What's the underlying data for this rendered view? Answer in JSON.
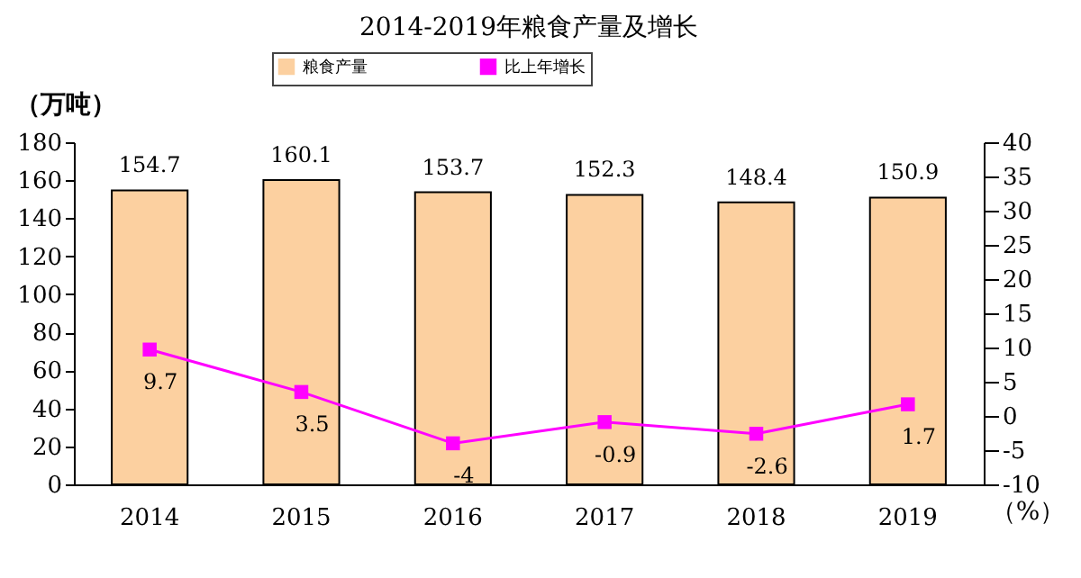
{
  "chart_data": {
    "type": "bar",
    "title": "2014-2019年粮食产量及增长",
    "categories": [
      "2014",
      "2015",
      "2016",
      "2017",
      "2018",
      "2019"
    ],
    "ylabel": "（万吨）",
    "y2label": "（%）",
    "ylim": [
      0,
      180
    ],
    "yticks": [
      0,
      20,
      40,
      60,
      80,
      100,
      120,
      140,
      160,
      180
    ],
    "y2lim": [
      -10,
      40
    ],
    "y2ticks": [
      -10,
      -5,
      0,
      5,
      10,
      15,
      20,
      25,
      30,
      35,
      40
    ],
    "series": [
      {
        "name": "粮食产量",
        "color": "#fcd0a0",
        "values": [
          154.7,
          160.1,
          153.7,
          152.3,
          148.4,
          150.9
        ]
      },
      {
        "name": "比上年增长",
        "type": "line",
        "axis": "y2",
        "color": "#ff00ff",
        "values": [
          9.7,
          3.5,
          -4,
          -0.9,
          -2.6,
          1.7
        ]
      }
    ],
    "data_labels": true,
    "legend": "top",
    "grid": false,
    "marker": "square"
  }
}
